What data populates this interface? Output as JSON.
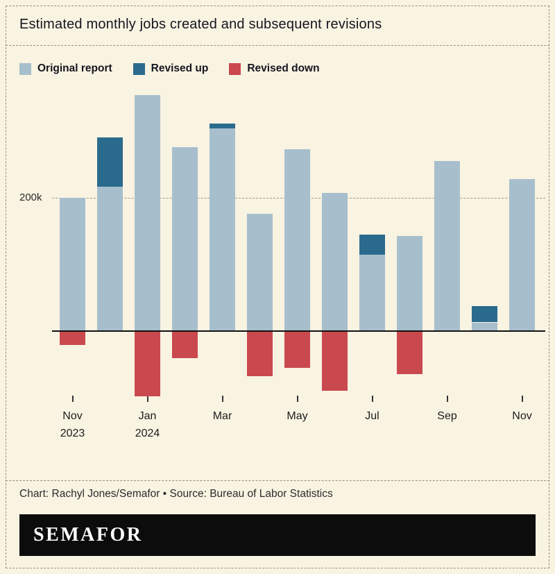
{
  "title": "Estimated monthly jobs created and subsequent revisions",
  "legend": {
    "items": [
      {
        "label": "Original report",
        "color": "#a7bfcd"
      },
      {
        "label": "Revised up",
        "color": "#2a6b8d"
      },
      {
        "label": "Revised down",
        "color": "#c9494f"
      }
    ]
  },
  "chart_data": {
    "type": "bar",
    "stacked": true,
    "title": "Estimated monthly jobs created and subsequent revisions",
    "unit": "thousands of jobs",
    "categories": [
      "Nov 2023",
      "Dec 2023",
      "Jan 2024",
      "Feb 2024",
      "Mar 2024",
      "Apr 2024",
      "May 2024",
      "Jun 2024",
      "Jul 2024",
      "Aug 2024",
      "Sep 2024",
      "Oct 2024",
      "Nov 2024"
    ],
    "series": [
      {
        "name": "Original report",
        "color": "#a7bfcd",
        "values": [
          199,
          216,
          353,
          275,
          303,
          175,
          272,
          206,
          114,
          142,
          254,
          12,
          227
        ]
      },
      {
        "name": "Revised up",
        "color": "#2a6b8d",
        "values": [
          0,
          74,
          0,
          0,
          7,
          0,
          0,
          0,
          30,
          0,
          0,
          24,
          0
        ]
      },
      {
        "name": "Revised down",
        "color": "#c9494f",
        "values": [
          -20,
          0,
          -97,
          -40,
          0,
          -67,
          -54,
          -88,
          0,
          -64,
          0,
          0,
          0
        ]
      }
    ],
    "y_axis": {
      "gridline_value": 200,
      "gridline_label": "200k",
      "ylim": [
        -120,
        380
      ],
      "grid": "dashed"
    },
    "x_axis": {
      "tick_indices": [
        0,
        2,
        4,
        6,
        8,
        10,
        12
      ],
      "tick_labels": [
        "Nov\n2023",
        "Jan\n2024",
        "Mar",
        "May",
        "Jul",
        "Sep",
        "Nov"
      ]
    },
    "legend_position": "top"
  },
  "footer": {
    "credit": "Chart: Rachyl Jones/Semafor • Source: Bureau of Labor Statistics",
    "logo": "SEMAFOR"
  }
}
